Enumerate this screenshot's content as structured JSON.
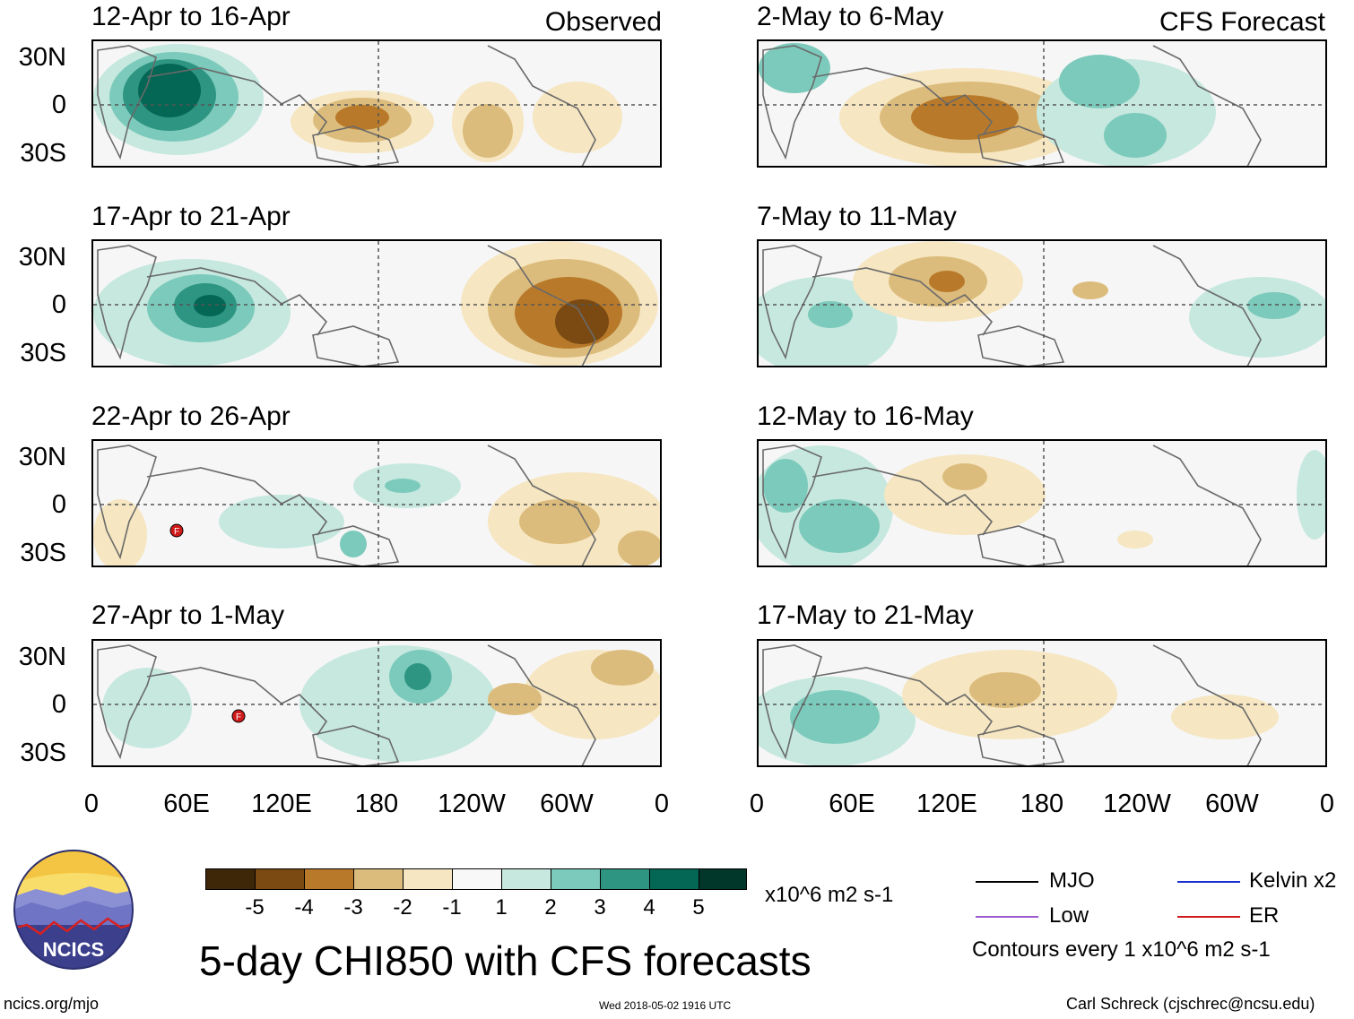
{
  "header": {
    "observed_label": "Observed",
    "forecast_label": "CFS Forecast"
  },
  "panels": [
    {
      "title": "12-Apr to 16-Apr"
    },
    {
      "title": "17-Apr to 21-Apr"
    },
    {
      "title": "22-Apr to 26-Apr"
    },
    {
      "title": "27-Apr to 1-May"
    },
    {
      "title": "2-May to 6-May"
    },
    {
      "title": "7-May to 11-May"
    },
    {
      "title": "12-May to 16-May"
    },
    {
      "title": "17-May to 21-May"
    }
  ],
  "lat_labels": [
    "30N",
    "0",
    "30S"
  ],
  "lon_labels": [
    "0",
    "60E",
    "120E",
    "180",
    "120W",
    "60W",
    "0"
  ],
  "colorbar": {
    "labels": [
      "-5",
      "-4",
      "-3",
      "-2",
      "-1",
      "1",
      "2",
      "3",
      "4",
      "5"
    ],
    "colors": [
      "#3e2609",
      "#7a4a12",
      "#b87a2a",
      "#dcbc7c",
      "#f6e6c1",
      "#f8f8f8",
      "#c6e8df",
      "#7ccabb",
      "#2f9583",
      "#046654",
      "#01362b"
    ],
    "units": "x10^6 m2 s-1"
  },
  "legend": {
    "mjo": "MJO",
    "low": "Low",
    "kelvin": "Kelvin x2",
    "er": "ER",
    "mjo_color": "#000000",
    "low_color": "#9b59d0",
    "kelvin_color": "#1a2fd0",
    "er_color": "#d01a1a",
    "contours": "Contours every 1 x10^6 m2 s-1"
  },
  "footer": {
    "logo_text": "NCICS",
    "title": "5-day CHI850 with CFS forecasts",
    "url": "ncics.org/mjo",
    "timestamp": "Wed 2018-05-02 1916 UTC",
    "author": "Carl Schreck (cjschrec@ncsu.edu)"
  },
  "storm_marker_label": "F"
}
